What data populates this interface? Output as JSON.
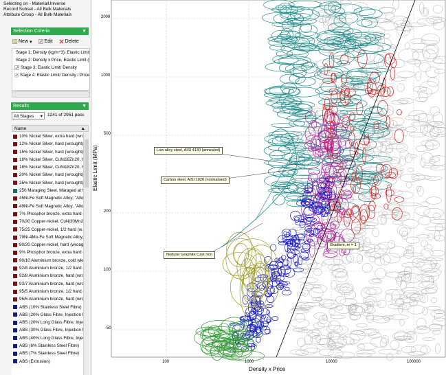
{
  "info": {
    "line1": "Selecting on - MaterialUniverse",
    "line2": "Record Subset - All Bulk Materials",
    "line3": "Attribute Group - All Bulk Materials"
  },
  "selection_criteria": {
    "header": "Selection Criteria",
    "toolbar": {
      "new_label": "New",
      "edit_label": "Edit",
      "delete_label": "Delete"
    },
    "stages": [
      "Stage 1: Density (kg/m^3), Elastic Limit (MPa)",
      "Stage 2: Density x Price, Elastic Limit (MPa)",
      "Stage 3: Elastic Limit/ Density",
      "Stage 4: Elastic Limit/ Density / Price"
    ]
  },
  "results": {
    "header": "Results",
    "filter_value": "All Stages",
    "pass_count": "1241 of 2951 pass",
    "column_name": "Name",
    "items": [
      {
        "name": "10% Nickel Silver, extra hard (wro...",
        "color": "#7a1010"
      },
      {
        "name": "12% Nickel Silver, hard (wrought)",
        "color": "#7a1010"
      },
      {
        "name": "15% Nickel Silver, hard (wrought) ...",
        "color": "#7a1010"
      },
      {
        "name": "18% Nickel Silver, CuNi18Zn20, ha...",
        "color": "#7a1010"
      },
      {
        "name": "18% Nickel Silver, CuNi18Zn20, ha...",
        "color": "#7a1010"
      },
      {
        "name": "20% Nickel Silver, hard (wrought)",
        "color": "#7a1010"
      },
      {
        "name": "25% Nickel Silver, hard (wrought)",
        "color": "#7a1010"
      },
      {
        "name": "250 Maraging Steel, Maraged at 9...",
        "color": "#1b6b6b"
      },
      {
        "name": "45Ni-Fe Soft Magnetic Alloy, \"Alloy...",
        "color": "#7a1010"
      },
      {
        "name": "49Ni-Fe Soft Magnetic Alloy, \"Alloy...",
        "color": "#7a1010"
      },
      {
        "name": "7% Phosphor bronze, extra hard (...",
        "color": "#7a1010"
      },
      {
        "name": "70/30 Copper-nickel, CuNi30Mn2F...",
        "color": "#7a1010"
      },
      {
        "name": "75/25 Copper-nickel, 1/2 hard (w...",
        "color": "#7a1010"
      },
      {
        "name": "79Ni-4Mo-Fe Soft Magnetic Alloy, ...",
        "color": "#7a1010"
      },
      {
        "name": "80/20 Copper-nickel, hard (wroug...",
        "color": "#7a1010"
      },
      {
        "name": "9% Phosphor bronze, extra hard (...",
        "color": "#7a1010"
      },
      {
        "name": "90/10 Aluminium bronze, cold wkd...",
        "color": "#7a1010"
      },
      {
        "name": "92/8 Aluminium bronze, 1/2 hard (...",
        "color": "#7a1010"
      },
      {
        "name": "92/8 Aluminium bronze, hard (wro...",
        "color": "#7a1010"
      },
      {
        "name": "93/7 Aluminium bronze, hard (wro...",
        "color": "#7a1010"
      },
      {
        "name": "95/5 Aluminium bronze, 1/2 hard (...",
        "color": "#7a1010"
      },
      {
        "name": "95/5 Aluminium bronze, hard (wro...",
        "color": "#7a1010"
      },
      {
        "name": "ABS (10% Stainless Steel Fibre)",
        "color": "#0c1c80"
      },
      {
        "name": "ABS (20% Glass Fibre, Injection M...",
        "color": "#0c1c80"
      },
      {
        "name": "ABS (20% Long Glass Fibre, Inject...",
        "color": "#0c1c80"
      },
      {
        "name": "ABS (30% Glass Fibre, Injection M...",
        "color": "#0c1c80"
      },
      {
        "name": "ABS (40% Long Glass Fibre, Inject...",
        "color": "#0c1c80"
      },
      {
        "name": "ABS (6% Stainless Steel Fibre)",
        "color": "#0c1c80"
      },
      {
        "name": "ABS (7% Stainless Steel Fibre)",
        "color": "#0c1c80"
      },
      {
        "name": "ABS (Extrusion)",
        "color": "#0c1c80"
      }
    ]
  },
  "plot": {
    "xlabel": "Density x Price",
    "ylabel": "Elastic Limit (MPa)",
    "y_ticks": [
      "2000",
      "1000",
      "500",
      "200",
      "100",
      "50"
    ],
    "x_ticks": [
      "100",
      "1000",
      "10000",
      "100000"
    ],
    "callouts": {
      "low_alloy": "Low alloy steel, AISI 4130 (annealed)",
      "carbon": "Carbon steel, AISI 1020 (normalised)",
      "nodular": "Nodular Graphite Cast Iron",
      "gradient": "Gradient, m = 1"
    }
  }
}
